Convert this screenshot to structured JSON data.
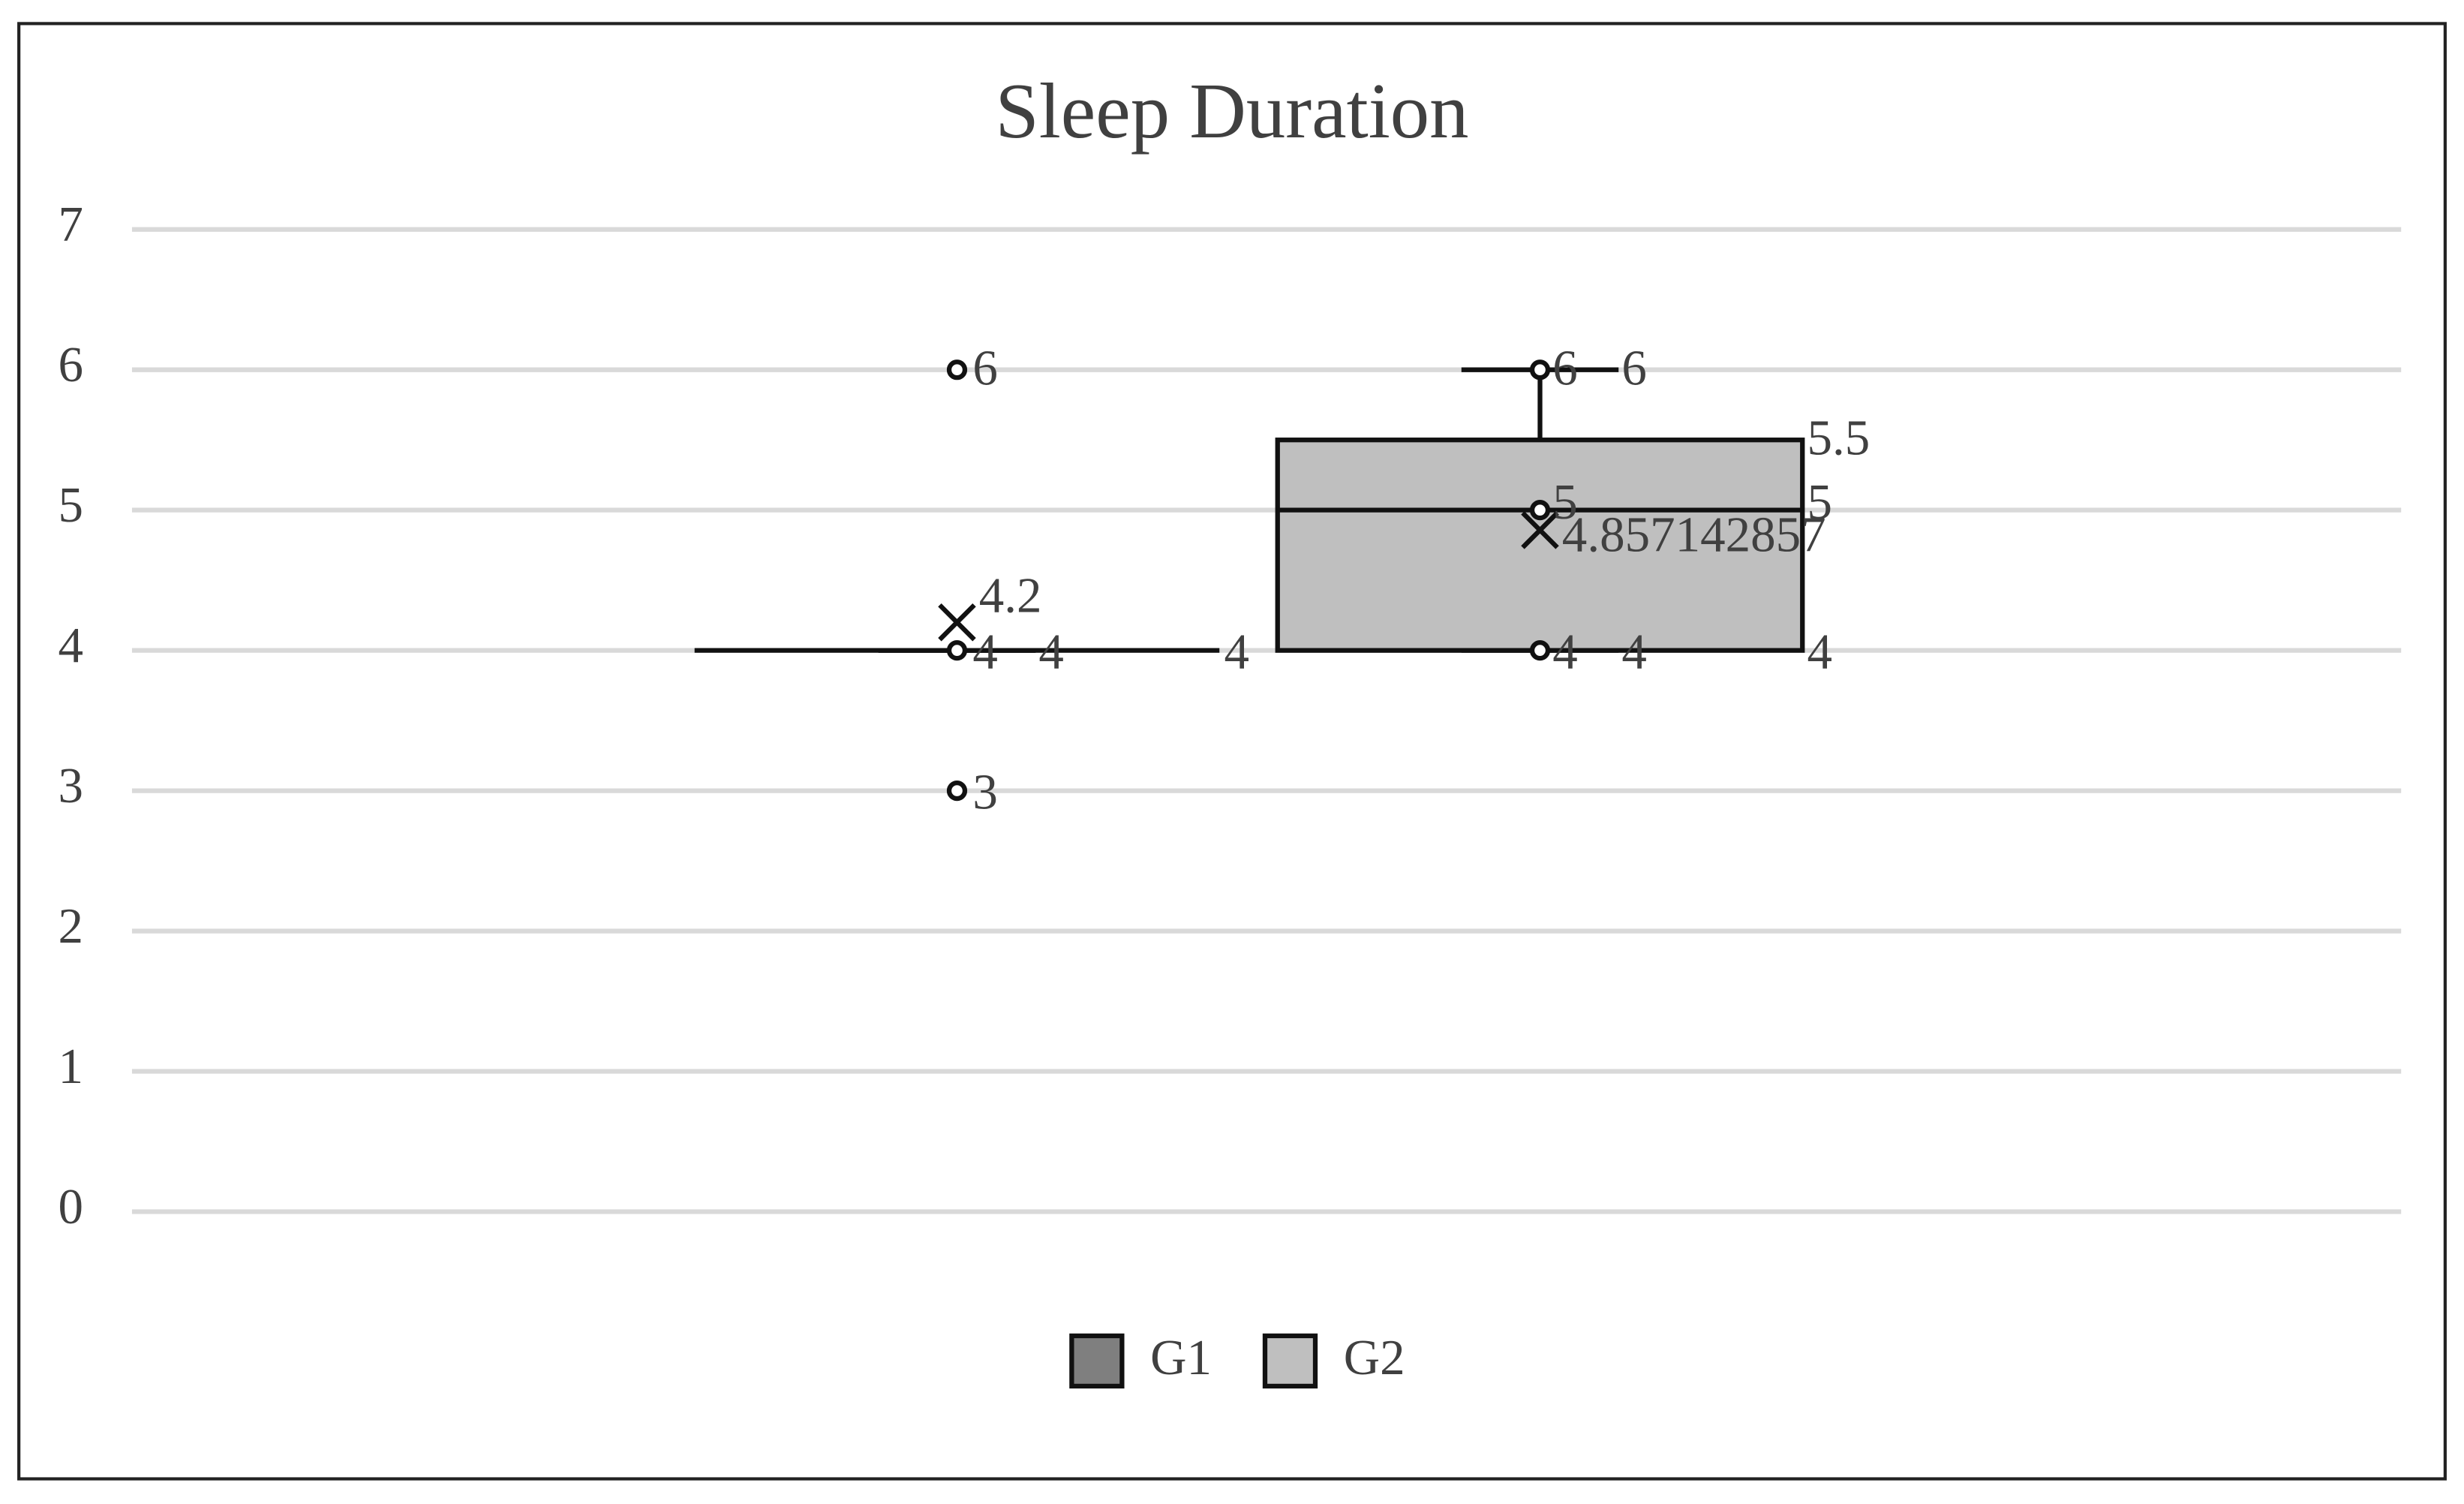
{
  "chart_data": {
    "type": "box",
    "title": "Sleep Duration",
    "ylim": [
      0,
      7
    ],
    "yticks": [
      0,
      1,
      2,
      3,
      4,
      5,
      6,
      7
    ],
    "grid": true,
    "legend": "bottom",
    "series": [
      {
        "name": "G1",
        "color": "#7f7f7f",
        "min": 4,
        "q1": 4,
        "median": 4,
        "q3": 4,
        "max": 4,
        "mean": 4.2,
        "points": [
          6,
          4,
          3
        ]
      },
      {
        "name": "G2",
        "color": "#bfbfbf",
        "min": 4,
        "q1": 4,
        "median": 5,
        "q3": 5.5,
        "max": 6,
        "mean": 4.857142857,
        "points": [
          6,
          5,
          4
        ]
      }
    ]
  }
}
